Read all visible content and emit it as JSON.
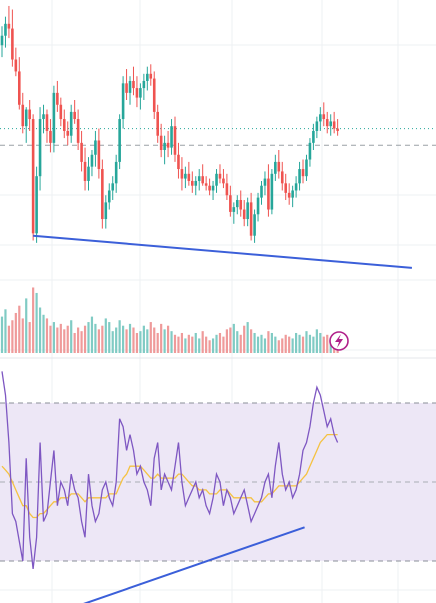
{
  "chart_data": [
    {
      "type": "candlestick",
      "panel": "price",
      "colors": {
        "up": "#26a69a",
        "down": "#ef5350",
        "trendline": "#3b5fd9",
        "last_price_line": "#26a69a"
      },
      "ylim": [
        50,
        260
      ],
      "x_count": 100,
      "candles": [
        [
          0,
          222,
          238,
          212,
          230
        ],
        [
          1,
          230,
          246,
          220,
          240
        ],
        [
          2,
          240,
          255,
          228,
          236
        ],
        [
          3,
          236,
          252,
          204,
          210
        ],
        [
          4,
          210,
          220,
          196,
          200
        ],
        [
          5,
          200,
          212,
          168,
          172
        ],
        [
          6,
          172,
          182,
          148,
          154
        ],
        [
          7,
          154,
          170,
          140,
          168
        ],
        [
          8,
          168,
          176,
          150,
          160
        ],
        [
          9,
          160,
          164,
          58,
          64
        ],
        [
          10,
          64,
          120,
          56,
          112
        ],
        [
          11,
          112,
          170,
          100,
          160
        ],
        [
          12,
          160,
          172,
          148,
          164
        ],
        [
          13,
          164,
          168,
          140,
          150
        ],
        [
          14,
          150,
          160,
          132,
          140
        ],
        [
          15,
          140,
          188,
          132,
          182
        ],
        [
          16,
          182,
          192,
          166,
          172
        ],
        [
          17,
          172,
          178,
          154,
          160
        ],
        [
          18,
          160,
          168,
          144,
          150
        ],
        [
          19,
          150,
          158,
          138,
          146
        ],
        [
          20,
          146,
          172,
          140,
          166
        ],
        [
          21,
          166,
          176,
          156,
          160
        ],
        [
          22,
          160,
          168,
          134,
          140
        ],
        [
          23,
          140,
          150,
          116,
          124
        ],
        [
          24,
          124,
          136,
          100,
          108
        ],
        [
          25,
          108,
          128,
          100,
          120
        ],
        [
          26,
          120,
          134,
          112,
          130
        ],
        [
          27,
          130,
          150,
          120,
          142
        ],
        [
          28,
          142,
          152,
          110,
          118
        ],
        [
          29,
          118,
          126,
          68,
          76
        ],
        [
          30,
          76,
          96,
          68,
          90
        ],
        [
          31,
          90,
          106,
          84,
          100
        ],
        [
          32,
          100,
          112,
          92,
          106
        ],
        [
          33,
          106,
          130,
          98,
          124
        ],
        [
          34,
          124,
          164,
          118,
          160
        ],
        [
          35,
          160,
          196,
          152,
          190
        ],
        [
          36,
          190,
          202,
          176,
          182
        ],
        [
          37,
          182,
          196,
          172,
          192
        ],
        [
          38,
          192,
          204,
          180,
          186
        ],
        [
          39,
          186,
          196,
          170,
          178
        ],
        [
          40,
          178,
          190,
          168,
          186
        ],
        [
          41,
          186,
          198,
          176,
          192
        ],
        [
          42,
          192,
          204,
          184,
          198
        ],
        [
          43,
          198,
          206,
          188,
          194
        ],
        [
          44,
          194,
          200,
          160,
          166
        ],
        [
          45,
          166,
          172,
          140,
          146
        ],
        [
          46,
          146,
          156,
          128,
          134
        ],
        [
          47,
          134,
          146,
          122,
          140
        ],
        [
          48,
          140,
          150,
          128,
          136
        ],
        [
          49,
          136,
          160,
          130,
          154
        ],
        [
          50,
          154,
          162,
          124,
          130
        ],
        [
          51,
          130,
          140,
          110,
          118
        ],
        [
          52,
          118,
          128,
          100,
          110
        ],
        [
          53,
          110,
          120,
          102,
          114
        ],
        [
          54,
          114,
          124,
          104,
          108
        ],
        [
          55,
          108,
          116,
          98,
          104
        ],
        [
          56,
          104,
          112,
          96,
          108
        ],
        [
          57,
          108,
          118,
          100,
          112
        ],
        [
          58,
          112,
          122,
          104,
          106
        ],
        [
          59,
          106,
          112,
          100,
          104
        ],
        [
          60,
          104,
          110,
          96,
          100
        ],
        [
          61,
          100,
          108,
          92,
          104
        ],
        [
          62,
          104,
          118,
          98,
          114
        ],
        [
          63,
          114,
          122,
          106,
          110
        ],
        [
          64,
          110,
          118,
          102,
          106
        ],
        [
          65,
          106,
          114,
          92,
          96
        ],
        [
          66,
          96,
          104,
          78,
          82
        ],
        [
          67,
          82,
          90,
          72,
          86
        ],
        [
          68,
          86,
          96,
          80,
          92
        ],
        [
          69,
          92,
          100,
          78,
          84
        ],
        [
          70,
          84,
          92,
          70,
          76
        ],
        [
          71,
          76,
          94,
          70,
          90
        ],
        [
          72,
          90,
          98,
          58,
          62
        ],
        [
          73,
          62,
          84,
          56,
          80
        ],
        [
          74,
          80,
          98,
          74,
          94
        ],
        [
          75,
          94,
          108,
          88,
          104
        ],
        [
          76,
          104,
          116,
          96,
          110
        ],
        [
          77,
          110,
          122,
          78,
          84
        ],
        [
          78,
          84,
          118,
          80,
          114
        ],
        [
          79,
          114,
          130,
          108,
          124
        ],
        [
          80,
          124,
          134,
          110,
          116
        ],
        [
          81,
          116,
          124,
          100,
          106
        ],
        [
          82,
          106,
          114,
          92,
          98
        ],
        [
          83,
          98,
          106,
          88,
          94
        ],
        [
          84,
          94,
          104,
          86,
          100
        ],
        [
          85,
          100,
          112,
          94,
          106
        ],
        [
          86,
          106,
          124,
          100,
          118
        ],
        [
          87,
          118,
          126,
          106,
          112
        ],
        [
          88,
          112,
          130,
          108,
          126
        ],
        [
          89,
          126,
          144,
          120,
          140
        ],
        [
          90,
          140,
          156,
          134,
          150
        ],
        [
          91,
          150,
          162,
          144,
          158
        ],
        [
          92,
          158,
          170,
          150,
          164
        ],
        [
          93,
          164,
          174,
          154,
          160
        ],
        [
          94,
          160,
          166,
          148,
          154
        ],
        [
          95,
          154,
          164,
          146,
          158
        ],
        [
          96,
          158,
          166,
          148,
          152
        ],
        [
          97,
          152,
          160,
          146,
          150
        ]
      ],
      "last_price": 152,
      "reference_level": 138,
      "trendline": {
        "x1": 9,
        "y1": 62,
        "x2": 98,
        "y2": 40
      }
    },
    {
      "type": "bar",
      "panel": "volume",
      "colors": {
        "up": "#80cbc4",
        "down": "#ef9a9a"
      },
      "ylim": [
        0,
        100
      ],
      "values": [
        40,
        48,
        30,
        36,
        44,
        52,
        38,
        60,
        34,
        72,
        66,
        50,
        42,
        38,
        30,
        34,
        28,
        32,
        26,
        30,
        36,
        22,
        28,
        24,
        30,
        34,
        40,
        32,
        26,
        30,
        38,
        34,
        24,
        28,
        36,
        30,
        26,
        32,
        28,
        22,
        24,
        30,
        26,
        34,
        28,
        22,
        32,
        26,
        30,
        24,
        20,
        18,
        22,
        16,
        20,
        18,
        22,
        16,
        24,
        18,
        14,
        16,
        20,
        22,
        18,
        26,
        28,
        32,
        24,
        20,
        30,
        34,
        26,
        22,
        18,
        20,
        16,
        24,
        22,
        18,
        14,
        16,
        20,
        18,
        16,
        22,
        20,
        18,
        24,
        20,
        18,
        26,
        22,
        18,
        20,
        16,
        14,
        12
      ],
      "icon": "lightning-icon"
    },
    {
      "type": "line",
      "panel": "rsi",
      "colors": {
        "rsi": "#7e57c2",
        "signal": "#f5c242",
        "band": "#ede7f6",
        "trendline": "#3b5fd9"
      },
      "ylim": [
        0,
        100
      ],
      "upper_band": 70,
      "middle": 50,
      "lower_band": 30,
      "rsi": [
        78,
        72,
        60,
        42,
        40,
        35,
        30,
        56,
        36,
        28,
        36,
        60,
        40,
        42,
        50,
        58,
        44,
        50,
        48,
        44,
        52,
        48,
        46,
        40,
        36,
        52,
        44,
        40,
        42,
        48,
        50,
        46,
        44,
        50,
        66,
        64,
        58,
        62,
        58,
        52,
        54,
        50,
        48,
        44,
        56,
        60,
        48,
        52,
        50,
        48,
        54,
        60,
        50,
        44,
        46,
        48,
        50,
        46,
        48,
        44,
        42,
        46,
        52,
        50,
        44,
        48,
        46,
        42,
        44,
        46,
        48,
        44,
        40,
        42,
        44,
        46,
        50,
        52,
        46,
        54,
        60,
        52,
        48,
        50,
        46,
        48,
        52,
        58,
        60,
        64,
        70,
        74,
        72,
        68,
        64,
        66,
        62,
        60
      ],
      "signal": [
        54,
        53,
        52,
        50,
        48,
        46,
        44,
        44,
        42,
        41,
        41,
        42,
        42,
        43,
        44,
        45,
        45,
        46,
        46,
        46,
        47,
        47,
        47,
        46,
        45,
        46,
        46,
        46,
        46,
        46,
        46,
        47,
        47,
        47,
        49,
        51,
        52,
        54,
        54,
        54,
        54,
        53,
        52,
        51,
        51,
        52,
        51,
        51,
        51,
        51,
        51,
        52,
        52,
        51,
        50,
        49,
        49,
        48,
        48,
        48,
        47,
        47,
        47,
        48,
        48,
        48,
        47,
        46,
        46,
        46,
        46,
        46,
        46,
        45,
        45,
        45,
        46,
        47,
        47,
        48,
        49,
        49,
        49,
        49,
        49,
        49,
        50,
        51,
        52,
        54,
        56,
        58,
        60,
        61,
        62,
        62,
        62,
        62
      ],
      "trendline": {
        "x1": 8,
        "y1": 22,
        "x2": 73,
        "y2": 36
      }
    }
  ]
}
